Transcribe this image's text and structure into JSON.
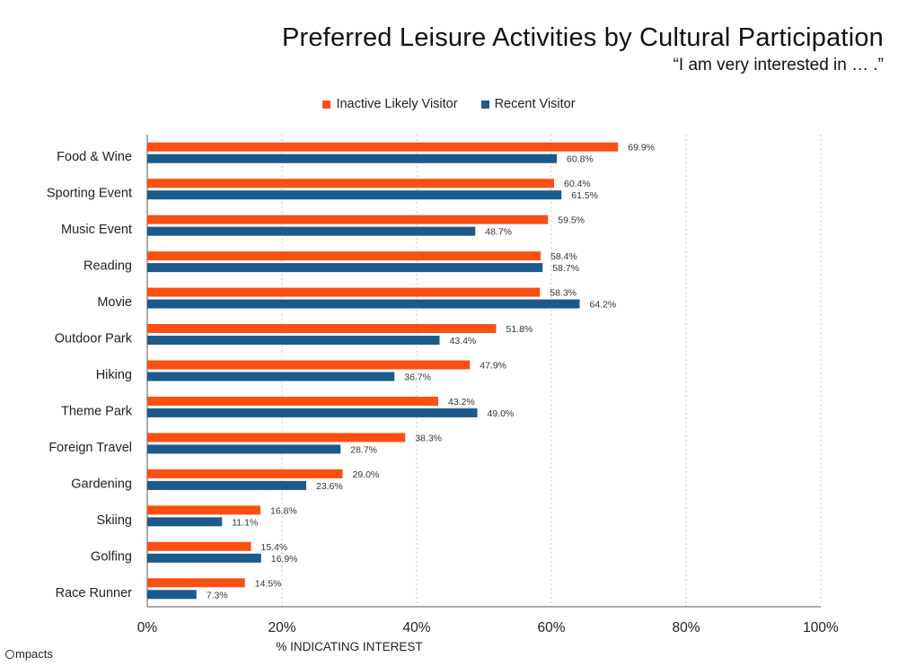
{
  "title": "Preferred Leisure Activities by Cultural Participation",
  "subtitle": "“I am very interested in … .”",
  "logo_text": "mpacts",
  "colors": {
    "inactive": "#fc4f12",
    "recent": "#1c5a8c",
    "grid": "#c9c9c9",
    "axis": "#555555"
  },
  "chart_data": {
    "type": "bar",
    "orientation": "horizontal",
    "categories": [
      "Food & Wine",
      "Sporting Event",
      "Music Event",
      "Reading",
      "Movie",
      "Outdoor Park",
      "Hiking",
      "Theme Park",
      "Foreign Travel",
      "Gardening",
      "Skiing",
      "Golfing",
      "Race Runner"
    ],
    "series": [
      {
        "name": "Inactive Likely Visitor",
        "values": [
          69.9,
          60.4,
          59.5,
          58.4,
          58.3,
          51.8,
          47.9,
          43.2,
          38.3,
          29.0,
          16.8,
          15.4,
          14.5
        ],
        "labels": [
          "69.9%",
          "60.4%",
          "59.5%",
          "58.4%",
          "58.3%",
          "51.8%",
          "47.9%",
          "43.2%",
          "38.3%",
          "29.0%",
          "16.8%",
          "15.4%",
          "14.5%"
        ]
      },
      {
        "name": "Recent Visitor",
        "values": [
          60.8,
          61.5,
          48.7,
          58.7,
          64.2,
          43.4,
          36.7,
          49.0,
          28.7,
          23.6,
          11.1,
          16.9,
          7.3
        ],
        "labels": [
          "60.8%",
          "61.5%",
          "48.7%",
          "58.7%",
          "64.2%",
          "43.4%",
          "36.7%",
          "49.0%",
          "28.7%",
          "23.6%",
          "11.1%",
          "16.9%",
          "7.3%"
        ]
      }
    ],
    "xlabel": "% INDICATING INTEREST",
    "xlim": [
      0,
      100
    ],
    "xticks": [
      "0%",
      "20%",
      "40%",
      "60%",
      "80%",
      "100%"
    ],
    "grid": "vertical-dotted",
    "legend_position": "top-center"
  }
}
